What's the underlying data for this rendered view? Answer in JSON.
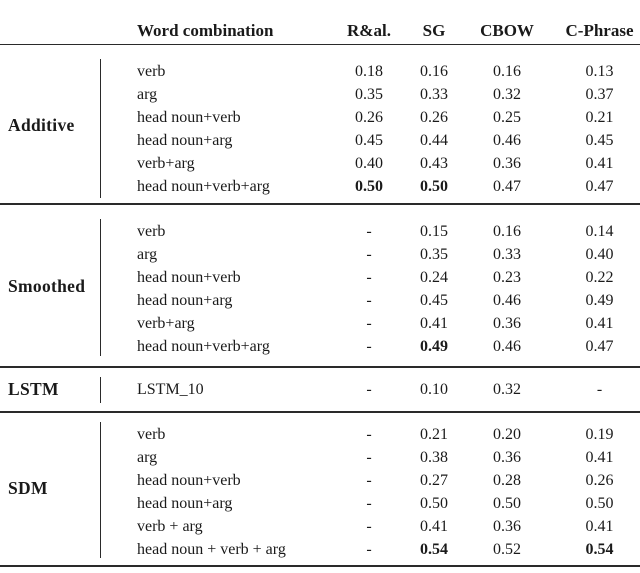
{
  "table": {
    "header": {
      "combo": "Word combination",
      "models": [
        "R&al.",
        "SG",
        "CBOW",
        "C-Phrase"
      ]
    },
    "missing_marker": "-",
    "groups": [
      {
        "label": "Additive",
        "rows": [
          {
            "combo": "verb",
            "values": [
              "0.18",
              "0.16",
              "0.16",
              "0.13"
            ],
            "bold": [
              false,
              false,
              false,
              false
            ]
          },
          {
            "combo": "arg",
            "values": [
              "0.35",
              "0.33",
              "0.32",
              "0.37"
            ],
            "bold": [
              false,
              false,
              false,
              false
            ]
          },
          {
            "combo": "head noun+verb",
            "values": [
              "0.26",
              "0.26",
              "0.25",
              "0.21"
            ],
            "bold": [
              false,
              false,
              false,
              false
            ]
          },
          {
            "combo": "head noun+arg",
            "values": [
              "0.45",
              "0.44",
              "0.46",
              "0.45"
            ],
            "bold": [
              false,
              false,
              false,
              false
            ]
          },
          {
            "combo": "verb+arg",
            "values": [
              "0.40",
              "0.43",
              "0.36",
              "0.41"
            ],
            "bold": [
              false,
              false,
              false,
              false
            ]
          },
          {
            "combo": "head noun+verb+arg",
            "values": [
              "0.50",
              "0.50",
              "0.47",
              "0.47"
            ],
            "bold": [
              true,
              true,
              false,
              false
            ]
          }
        ]
      },
      {
        "label": "Smoothed",
        "rows": [
          {
            "combo": "verb",
            "values": [
              "-",
              "0.15",
              "0.16",
              "0.14"
            ],
            "bold": [
              false,
              false,
              false,
              false
            ]
          },
          {
            "combo": "arg",
            "values": [
              "-",
              "0.35",
              "0.33",
              "0.40"
            ],
            "bold": [
              false,
              false,
              false,
              false
            ]
          },
          {
            "combo": "head noun+verb",
            "values": [
              "-",
              "0.24",
              "0.23",
              "0.22"
            ],
            "bold": [
              false,
              false,
              false,
              false
            ]
          },
          {
            "combo": "head noun+arg",
            "values": [
              "-",
              "0.45",
              "0.46",
              "0.49"
            ],
            "bold": [
              false,
              false,
              false,
              false
            ]
          },
          {
            "combo": "verb+arg",
            "values": [
              "-",
              "0.41",
              "0.36",
              "0.41"
            ],
            "bold": [
              false,
              false,
              false,
              false
            ]
          },
          {
            "combo": "head noun+verb+arg",
            "values": [
              "-",
              "0.49",
              "0.46",
              "0.47"
            ],
            "bold": [
              false,
              true,
              false,
              false
            ]
          }
        ]
      },
      {
        "label": "LSTM",
        "rows": [
          {
            "combo": "LSTM_10",
            "values": [
              "-",
              "0.10",
              "0.32",
              "-"
            ],
            "bold": [
              false,
              false,
              false,
              false
            ]
          }
        ]
      },
      {
        "label": "SDM",
        "rows": [
          {
            "combo": "verb",
            "values": [
              "-",
              "0.21",
              "0.20",
              "0.19"
            ],
            "bold": [
              false,
              false,
              false,
              false
            ]
          },
          {
            "combo": "arg",
            "values": [
              "-",
              "0.38",
              "0.36",
              "0.41"
            ],
            "bold": [
              false,
              false,
              false,
              false
            ]
          },
          {
            "combo": "head noun+verb",
            "values": [
              "-",
              "0.27",
              "0.28",
              "0.26"
            ],
            "bold": [
              false,
              false,
              false,
              false
            ]
          },
          {
            "combo": "head noun+arg",
            "values": [
              "-",
              "0.50",
              "0.50",
              "0.50"
            ],
            "bold": [
              false,
              false,
              false,
              false
            ]
          },
          {
            "combo": "verb + arg",
            "values": [
              "-",
              "0.41",
              "0.36",
              "0.41"
            ],
            "bold": [
              false,
              false,
              false,
              false
            ]
          },
          {
            "combo": "head noun + verb + arg",
            "values": [
              "-",
              "0.54",
              "0.52",
              "0.54"
            ],
            "bold": [
              false,
              true,
              false,
              true
            ]
          }
        ]
      }
    ]
  },
  "colors": {
    "text": "#1a1a1a",
    "rule": "#2a2a2a",
    "background": "#ffffff"
  }
}
